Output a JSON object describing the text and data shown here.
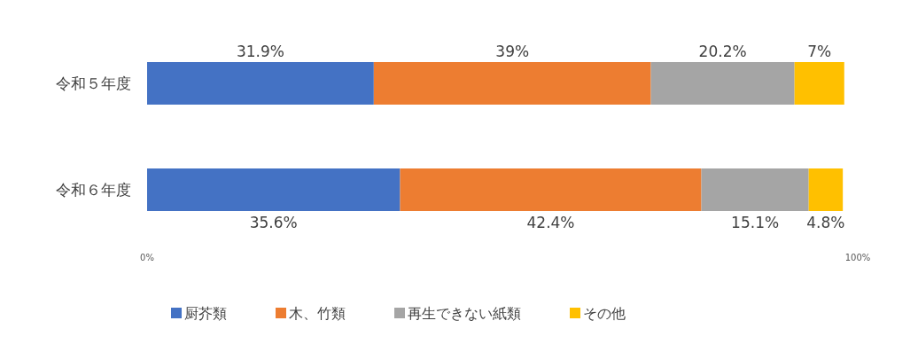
{
  "chart_data": {
    "type": "bar",
    "orientation": "horizontal",
    "stacked": true,
    "categories": [
      "令和５年度",
      "令和６年度"
    ],
    "series": [
      {
        "name": "厨芥類",
        "color": "#4472c4",
        "values": [
          31.9,
          35.6
        ],
        "value_labels": [
          "31.9%",
          "35.6%"
        ]
      },
      {
        "name": "木、竹類",
        "color": "#ed7d31",
        "values": [
          39,
          42.4
        ],
        "value_labels": [
          "39%",
          "42.4%"
        ]
      },
      {
        "name": "再生できない紙類",
        "color": "#a5a5a5",
        "values": [
          20.2,
          15.1
        ],
        "value_labels": [
          "20.2%",
          "15.1%"
        ]
      },
      {
        "name": "その他",
        "color": "#ffc000",
        "values": [
          7,
          4.8
        ],
        "value_labels": [
          "7%",
          "4.8%"
        ]
      }
    ],
    "xlim": [
      0,
      100
    ],
    "xticks": [
      {
        "value": 0,
        "label": "0%"
      },
      {
        "value": 100,
        "label": "100%"
      }
    ],
    "legend": "bottom"
  }
}
